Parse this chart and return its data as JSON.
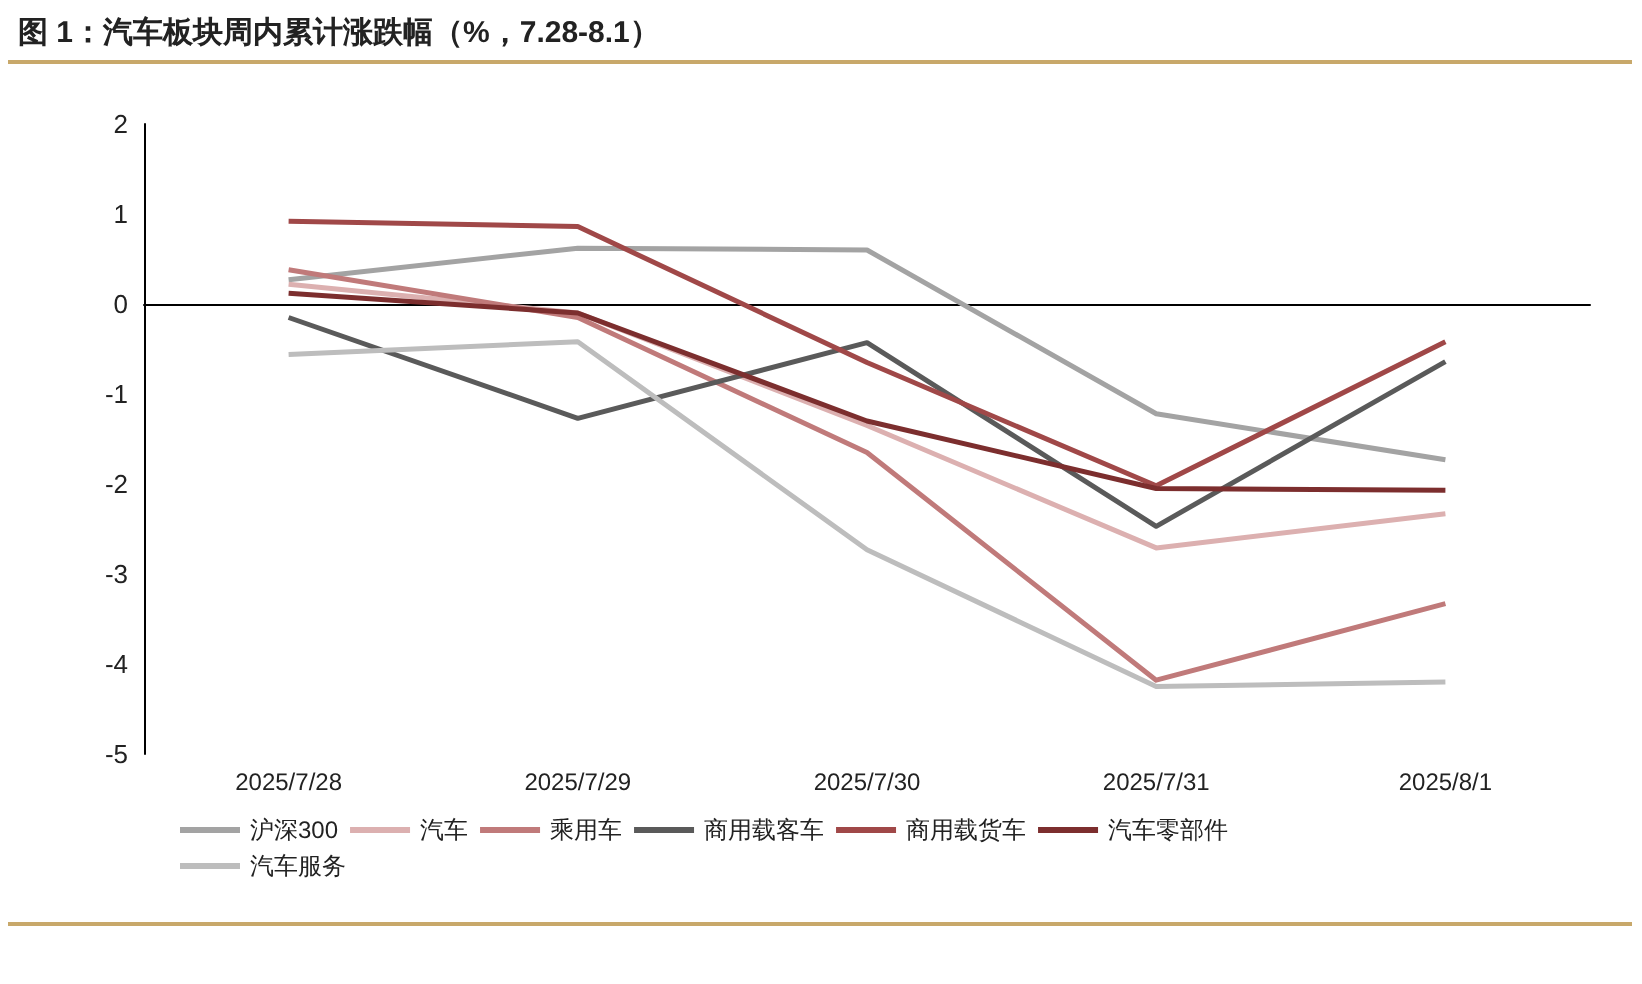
{
  "chart_data": {
    "type": "line",
    "title": "图 1：汽车板块周内累计涨跌幅（%，7.28-8.1）",
    "categories": [
      "2025/7/28",
      "2025/7/29",
      "2025/7/30",
      "2025/7/31",
      "2025/8/1"
    ],
    "series": [
      {
        "name": "沪深300",
        "color": "#a3a3a3",
        "values": [
          0.27,
          0.62,
          0.6,
          -1.22,
          -1.73
        ]
      },
      {
        "name": "汽车",
        "color": "#dcb0b0",
        "values": [
          0.22,
          -0.1,
          -1.35,
          -2.71,
          -2.33
        ]
      },
      {
        "name": "乘用车",
        "color": "#c07a7a",
        "values": [
          0.38,
          -0.15,
          -1.65,
          -4.18,
          -3.33
        ]
      },
      {
        "name": "商用载客车",
        "color": "#5a5a5a",
        "values": [
          -0.15,
          -1.27,
          -0.43,
          -2.47,
          -0.64
        ]
      },
      {
        "name": "商用载货车",
        "color": "#a04848",
        "values": [
          0.92,
          0.86,
          -0.65,
          -2.02,
          -0.42
        ]
      },
      {
        "name": "汽车零部件",
        "color": "#7c2e2e",
        "values": [
          0.12,
          -0.1,
          -1.3,
          -2.05,
          -2.07
        ]
      },
      {
        "name": "汽车服务",
        "color": "#bdbdbd",
        "values": [
          -0.56,
          -0.42,
          -2.73,
          -4.25,
          -4.2
        ]
      }
    ],
    "ylim": [
      -5,
      2
    ],
    "yticks": [
      -5,
      -4,
      -3,
      -2,
      -1,
      0,
      1,
      2
    ],
    "legend": "bottom",
    "marker": "none",
    "line_style": "solid"
  }
}
